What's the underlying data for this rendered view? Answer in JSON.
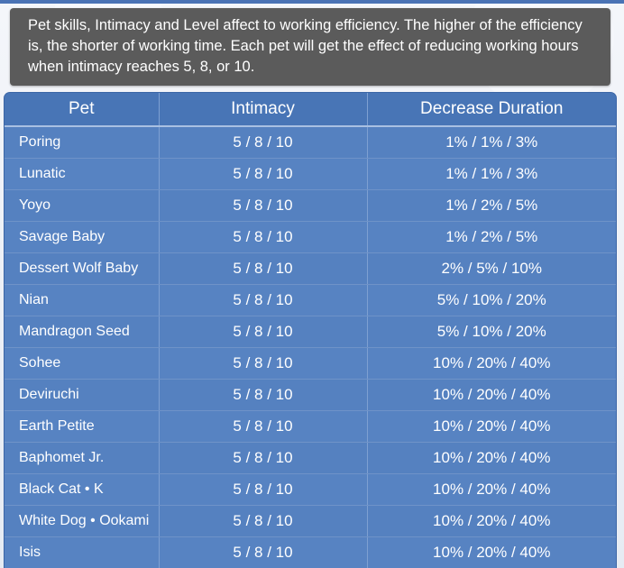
{
  "note": {
    "text": "Pet skills, Intimacy and Level affect to working efficiency. The higher of the efficiency is, the shorter of working time. Each pet will get the effect of reducing working hours when intimacy reaches 5, 8, or 10."
  },
  "table": {
    "headers": [
      "Pet",
      "Intimacy",
      "Decrease Duration"
    ],
    "rows": [
      {
        "pet": "Poring",
        "intimacy": "5 / 8 / 10",
        "decrease": "1% / 1% / 3%"
      },
      {
        "pet": "Lunatic",
        "intimacy": "5 / 8 / 10",
        "decrease": "1% / 1% / 3%"
      },
      {
        "pet": "Yoyo",
        "intimacy": "5 / 8 / 10",
        "decrease": "1% / 2% / 5%"
      },
      {
        "pet": "Savage Baby",
        "intimacy": "5 / 8 / 10",
        "decrease": "1% / 2% / 5%"
      },
      {
        "pet": "Dessert Wolf Baby",
        "intimacy": "5 / 8 / 10",
        "decrease": "2% / 5% / 10%"
      },
      {
        "pet": "Nian",
        "intimacy": "5 / 8 / 10",
        "decrease": "5% / 10% / 20%"
      },
      {
        "pet": "Mandragon Seed",
        "intimacy": "5 / 8 / 10",
        "decrease": "5% / 10% / 20%"
      },
      {
        "pet": "Sohee",
        "intimacy": "5 / 8 / 10",
        "decrease": "10% / 20% / 40%"
      },
      {
        "pet": "Deviruchi",
        "intimacy": "5 / 8 / 10",
        "decrease": "10% / 20% / 40%"
      },
      {
        "pet": "Earth Petite",
        "intimacy": "5 / 8 / 10",
        "decrease": "10% / 20% / 40%"
      },
      {
        "pet": "Baphomet Jr.",
        "intimacy": "5 / 8 / 10",
        "decrease": "10% / 20% / 40%"
      },
      {
        "pet": "Black Cat • K",
        "intimacy": "5 / 8 / 10",
        "decrease": "10% / 20% / 40%"
      },
      {
        "pet": "White Dog • Ookami",
        "intimacy": "5 / 8 / 10",
        "decrease": "10% / 20% / 40%"
      },
      {
        "pet": "Isis",
        "intimacy": "5 / 8 / 10",
        "decrease": "10% / 20% / 40%"
      }
    ]
  }
}
